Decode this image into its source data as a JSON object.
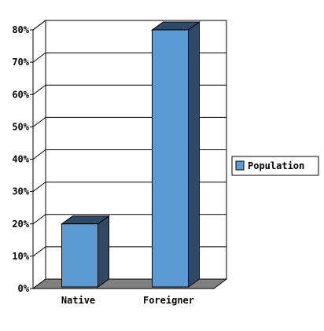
{
  "chart_data": {
    "type": "bar",
    "style": "3d",
    "categories": [
      "Native",
      "Foreigner"
    ],
    "series": [
      {
        "name": "Population",
        "values": [
          20,
          80
        ],
        "color": "#5b9bd5"
      }
    ],
    "ylim": [
      0,
      80
    ],
    "yticks": [
      0,
      10,
      20,
      30,
      40,
      50,
      60,
      70,
      80
    ],
    "ytick_labels": [
      "0%",
      "10%",
      "20%",
      "30%",
      "40%",
      "50%",
      "60%",
      "70%",
      "80%"
    ],
    "grid": true,
    "legend": "right"
  },
  "colors": {
    "bar_front": "#5b9bd5",
    "bar_side": "#2e4a66",
    "bar_top": "#2e4a66",
    "floor": "#808080",
    "grid": "#000000"
  }
}
